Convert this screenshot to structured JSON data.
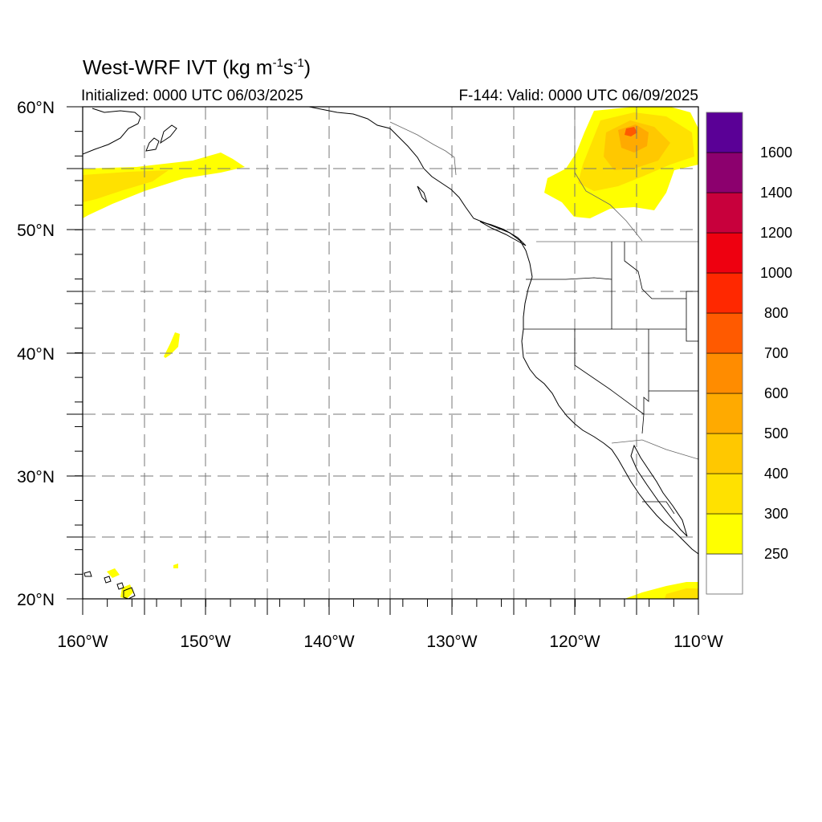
{
  "header": {
    "title_main": "West-WRF IVT (kg m",
    "title_sup1": "-1",
    "title_mid": "s",
    "title_sup2": "-1",
    "title_end": ")",
    "initialized": "Initialized: 0000 UTC 06/03/2025",
    "valid": "F-144: Valid: 0000 UTC 06/09/2025"
  },
  "axes": {
    "lon_labels": [
      "160°W",
      "150°W",
      "140°W",
      "130°W",
      "120°W",
      "110°W"
    ],
    "lat_labels": [
      "60°N",
      "50°N",
      "40°N",
      "30°N",
      "20°N"
    ]
  },
  "colorbar": {
    "labels": [
      "250",
      "300",
      "400",
      "500",
      "600",
      "700",
      "800",
      "1000",
      "1200",
      "1400",
      "1600"
    ],
    "colors": [
      "#ffffff",
      "#ffff00",
      "#ffe100",
      "#ffc800",
      "#ffaa00",
      "#ff8c00",
      "#ff5a00",
      "#ff2800",
      "#ee0010",
      "#c8003c",
      "#8c006e",
      "#5a0096"
    ]
  }
}
